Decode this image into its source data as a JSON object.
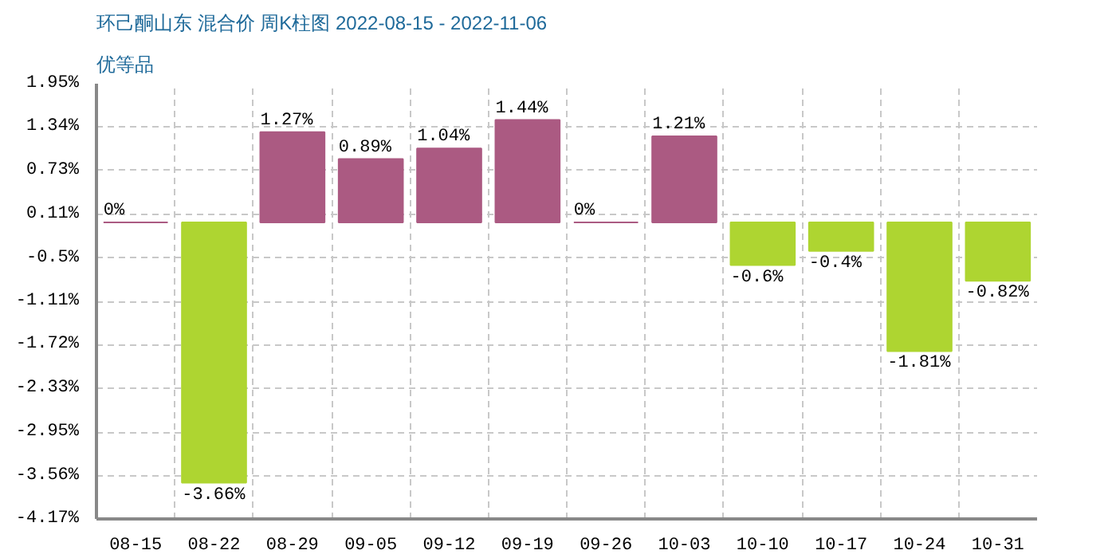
{
  "chart_data": {
    "type": "bar",
    "title": "环己酮山东 混合价 周K柱图 2022-08-15 - 2022-11-06",
    "subtitle": "优等品",
    "categories": [
      "08-15",
      "08-22",
      "08-29",
      "09-05",
      "09-12",
      "09-19",
      "09-26",
      "10-03",
      "10-10",
      "10-17",
      "10-24",
      "10-31"
    ],
    "values": [
      0,
      -3.66,
      1.27,
      0.89,
      1.04,
      1.44,
      0,
      1.21,
      -0.6,
      -0.4,
      -1.81,
      -0.82
    ],
    "value_labels": [
      "0%",
      "-3.66%",
      "1.27%",
      "0.89%",
      "1.04%",
      "1.44%",
      "0%",
      "1.21%",
      "-0.6%",
      "-0.4%",
      "-1.81%",
      "-0.82%"
    ],
    "colors": [
      "#ab5a82",
      "#aed531",
      "#ab5a82",
      "#ab5a82",
      "#ab5a82",
      "#ab5a82",
      "#ab5a82",
      "#ab5a82",
      "#aed531",
      "#aed531",
      "#aed531",
      "#aed531"
    ],
    "ylim": [
      -4.17,
      1.95
    ],
    "yticks": [
      {
        "value": 1.95,
        "label": "1.95%"
      },
      {
        "value": 1.34,
        "label": "1.34%"
      },
      {
        "value": 0.73,
        "label": "0.73%"
      },
      {
        "value": 0.11,
        "label": "0.11%"
      },
      {
        "value": -0.5,
        "label": "-0.5%"
      },
      {
        "value": -1.11,
        "label": "-1.11%"
      },
      {
        "value": -1.72,
        "label": "-1.72%"
      },
      {
        "value": -2.33,
        "label": "-2.33%"
      },
      {
        "value": -2.95,
        "label": "-2.95%"
      },
      {
        "value": -3.56,
        "label": "-3.56%"
      },
      {
        "value": -4.17,
        "label": "-4.17%"
      }
    ],
    "grid": true
  }
}
